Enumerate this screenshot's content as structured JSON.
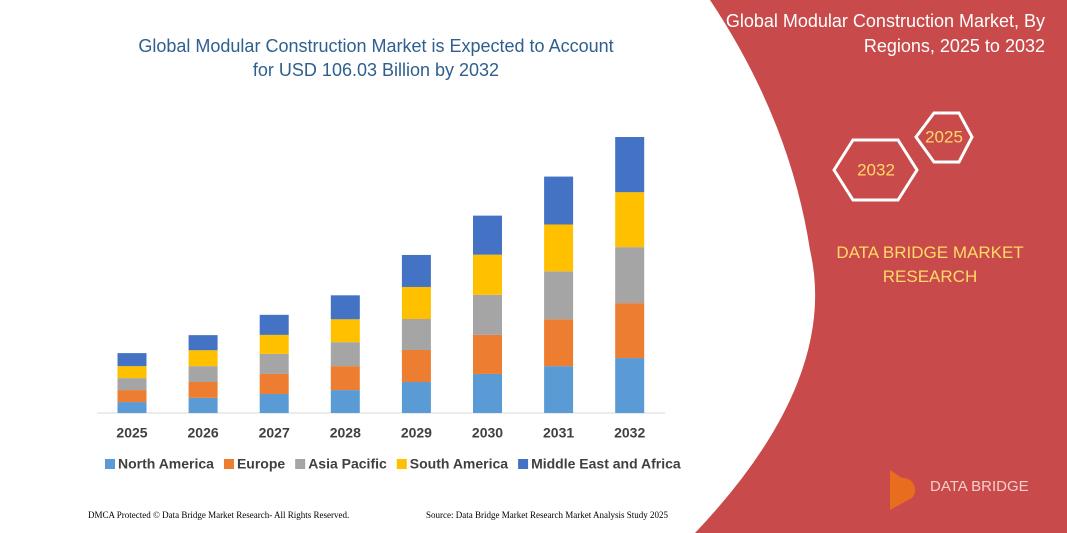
{
  "chart_data": {
    "type": "stacked_bar",
    "title": "Global Modular Construction Market is Expected to Account for USD 106.03 Billion by 2032",
    "categories": [
      "2025",
      "2026",
      "2027",
      "2028",
      "2029",
      "2030",
      "2031",
      "2032"
    ],
    "series": [
      {
        "name": "North America",
        "color": "#5b9bd5",
        "values": [
          4.2,
          5.8,
          7.3,
          8.8,
          11.9,
          15.0,
          18.0,
          21.1
        ]
      },
      {
        "name": "Europe",
        "color": "#ed7d31",
        "values": [
          4.6,
          6.1,
          7.7,
          9.2,
          12.3,
          15.0,
          18.0,
          21.1
        ]
      },
      {
        "name": "Asia Pacific",
        "color": "#a5a5a5",
        "values": [
          4.6,
          6.1,
          7.7,
          9.2,
          11.9,
          15.4,
          18.4,
          21.5
        ]
      },
      {
        "name": "South America",
        "color": "#ffc000",
        "values": [
          4.6,
          6.1,
          7.3,
          8.8,
          12.3,
          15.4,
          18.0,
          21.1
        ]
      },
      {
        "name": "Middle East and Africa",
        "color": "#4472c4",
        "values": [
          5.0,
          5.8,
          7.7,
          9.2,
          12.3,
          15.0,
          18.4,
          21.2
        ]
      }
    ],
    "legend": "bottom"
  },
  "panel": {
    "title": "Global Modular Construction Market, By Regions, 2025 to 2032",
    "hex_labels": [
      "2025",
      "2032"
    ],
    "brand": "DATA BRIDGE MARKET RESEARCH",
    "logo": "DATA BRIDGE"
  },
  "footer": {
    "left": "DMCA Protected © Data Bridge Market Research- All Rights Reserved.",
    "right": "Source: Data Bridge Market Research Market Analysis Study 2025"
  }
}
